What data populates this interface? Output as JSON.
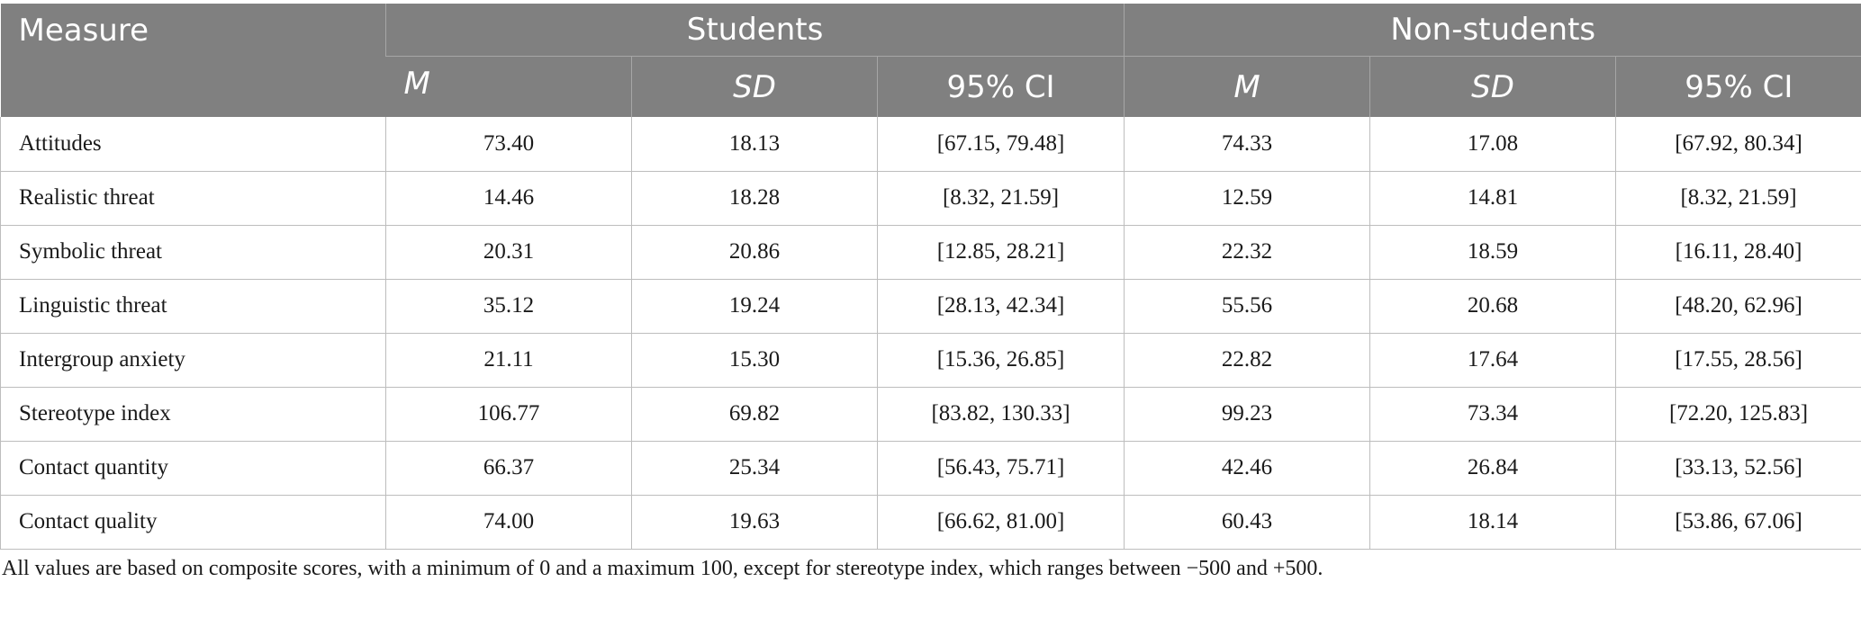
{
  "table": {
    "header": {
      "measure_label": "Measure",
      "groups": [
        "Students",
        "Non-students"
      ],
      "subheaders": [
        "M",
        "SD",
        "95% CI",
        "M",
        "SD",
        "95% CI"
      ]
    },
    "rows": [
      {
        "measure": "Attitudes",
        "cells": [
          "73.40",
          "18.13",
          "[67.15, 79.48]",
          "74.33",
          "17.08",
          "[67.92, 80.34]"
        ]
      },
      {
        "measure": "Realistic threat",
        "cells": [
          "14.46",
          "18.28",
          "[8.32, 21.59]",
          "12.59",
          "14.81",
          "[8.32, 21.59]"
        ]
      },
      {
        "measure": "Symbolic threat",
        "cells": [
          "20.31",
          "20.86",
          "[12.85, 28.21]",
          "22.32",
          "18.59",
          "[16.11, 28.40]"
        ]
      },
      {
        "measure": "Linguistic threat",
        "cells": [
          "35.12",
          "19.24",
          "[28.13, 42.34]",
          "55.56",
          "20.68",
          "[48.20, 62.96]"
        ]
      },
      {
        "measure": "Intergroup anxiety",
        "cells": [
          "21.11",
          "15.30",
          "[15.36, 26.85]",
          "22.82",
          "17.64",
          "[17.55, 28.56]"
        ]
      },
      {
        "measure": "Stereotype index",
        "cells": [
          "106.77",
          "69.82",
          "[83.82, 130.33]",
          "99.23",
          "73.34",
          "[72.20, 125.83]"
        ]
      },
      {
        "measure": "Contact quantity",
        "cells": [
          "66.37",
          "25.34",
          "[56.43, 75.71]",
          "42.46",
          "26.84",
          "[33.13, 52.56]"
        ]
      },
      {
        "measure": "Contact quality",
        "cells": [
          "74.00",
          "19.63",
          "[66.62, 81.00]",
          "60.43",
          "18.14",
          "[53.86, 67.06]"
        ]
      }
    ]
  },
  "footnote": "All values are based on composite scores, with a minimum of 0 and a maximum 100, except for stereotype index, which ranges between −500 and +500.",
  "colors": {
    "header_bg": "#808080",
    "header_text": "#ffffff",
    "grid_line": "#bdbdbd"
  }
}
